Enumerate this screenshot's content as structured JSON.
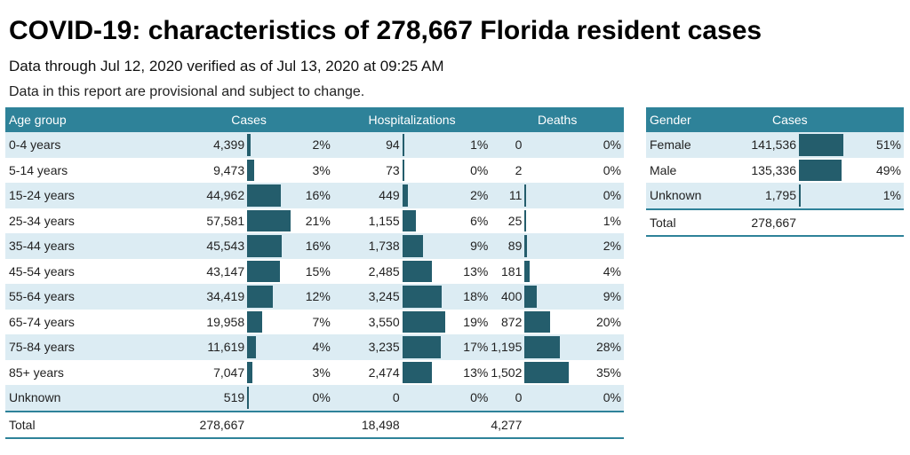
{
  "header": {
    "title": "COVID-19: characteristics of 278,667 Florida resident cases",
    "subtitle": "Data through Jul 12, 2020 verified as of Jul 13, 2020 at 09:25 AM",
    "note": "Data in this report are provisional and subject to change."
  },
  "colors": {
    "header_bg": "#2e8299",
    "bar": "#245d6c",
    "row_alt": "#dcecf3"
  },
  "age_table": {
    "headers": {
      "group": "Age group",
      "cases": "Cases",
      "hosp": "Hospitalizations",
      "deaths": "Deaths"
    },
    "rows": [
      {
        "group": "0-4 years",
        "cases": "4,399",
        "cases_pct": "2%",
        "cases_val": 4399,
        "hosp": "94",
        "hosp_pct": "1%",
        "hosp_val": 94,
        "deaths": "0",
        "deaths_pct": "0%",
        "deaths_val": 0
      },
      {
        "group": "5-14 years",
        "cases": "9,473",
        "cases_pct": "3%",
        "cases_val": 9473,
        "hosp": "73",
        "hosp_pct": "0%",
        "hosp_val": 73,
        "deaths": "2",
        "deaths_pct": "0%",
        "deaths_val": 2
      },
      {
        "group": "15-24 years",
        "cases": "44,962",
        "cases_pct": "16%",
        "cases_val": 44962,
        "hosp": "449",
        "hosp_pct": "2%",
        "hosp_val": 449,
        "deaths": "11",
        "deaths_pct": "0%",
        "deaths_val": 11
      },
      {
        "group": "25-34 years",
        "cases": "57,581",
        "cases_pct": "21%",
        "cases_val": 57581,
        "hosp": "1,155",
        "hosp_pct": "6%",
        "hosp_val": 1155,
        "deaths": "25",
        "deaths_pct": "1%",
        "deaths_val": 25
      },
      {
        "group": "35-44 years",
        "cases": "45,543",
        "cases_pct": "16%",
        "cases_val": 45543,
        "hosp": "1,738",
        "hosp_pct": "9%",
        "hosp_val": 1738,
        "deaths": "89",
        "deaths_pct": "2%",
        "deaths_val": 89
      },
      {
        "group": "45-54 years",
        "cases": "43,147",
        "cases_pct": "15%",
        "cases_val": 43147,
        "hosp": "2,485",
        "hosp_pct": "13%",
        "hosp_val": 2485,
        "deaths": "181",
        "deaths_pct": "4%",
        "deaths_val": 181
      },
      {
        "group": "55-64 years",
        "cases": "34,419",
        "cases_pct": "12%",
        "cases_val": 34419,
        "hosp": "3,245",
        "hosp_pct": "18%",
        "hosp_val": 3245,
        "deaths": "400",
        "deaths_pct": "9%",
        "deaths_val": 400
      },
      {
        "group": "65-74 years",
        "cases": "19,958",
        "cases_pct": "7%",
        "cases_val": 19958,
        "hosp": "3,550",
        "hosp_pct": "19%",
        "hosp_val": 3550,
        "deaths": "872",
        "deaths_pct": "20%",
        "deaths_val": 872
      },
      {
        "group": "75-84 years",
        "cases": "11,619",
        "cases_pct": "4%",
        "cases_val": 11619,
        "hosp": "3,235",
        "hosp_pct": "17%",
        "hosp_val": 3235,
        "deaths": "1,195",
        "deaths_pct": "28%",
        "deaths_val": 1195
      },
      {
        "group": "85+ years",
        "cases": "7,047",
        "cases_pct": "3%",
        "cases_val": 7047,
        "hosp": "2,474",
        "hosp_pct": "13%",
        "hosp_val": 2474,
        "deaths": "1,502",
        "deaths_pct": "35%",
        "deaths_val": 1502
      },
      {
        "group": "Unknown",
        "cases": "519",
        "cases_pct": "0%",
        "cases_val": 519,
        "hosp": "0",
        "hosp_pct": "0%",
        "hosp_val": 0,
        "deaths": "0",
        "deaths_pct": "0%",
        "deaths_val": 0
      }
    ],
    "total": {
      "label": "Total",
      "cases": "278,667",
      "hosp": "18,498",
      "deaths": "4,277"
    }
  },
  "gender_table": {
    "headers": {
      "group": "Gender",
      "cases": "Cases"
    },
    "rows": [
      {
        "group": "Female",
        "cases": "141,536",
        "cases_pct": "51%",
        "cases_val": 141536
      },
      {
        "group": "Male",
        "cases": "135,336",
        "cases_pct": "49%",
        "cases_val": 135336
      },
      {
        "group": "Unknown",
        "cases": "1,795",
        "cases_pct": "1%",
        "cases_val": 1795
      }
    ],
    "total": {
      "label": "Total",
      "cases": "278,667"
    }
  }
}
